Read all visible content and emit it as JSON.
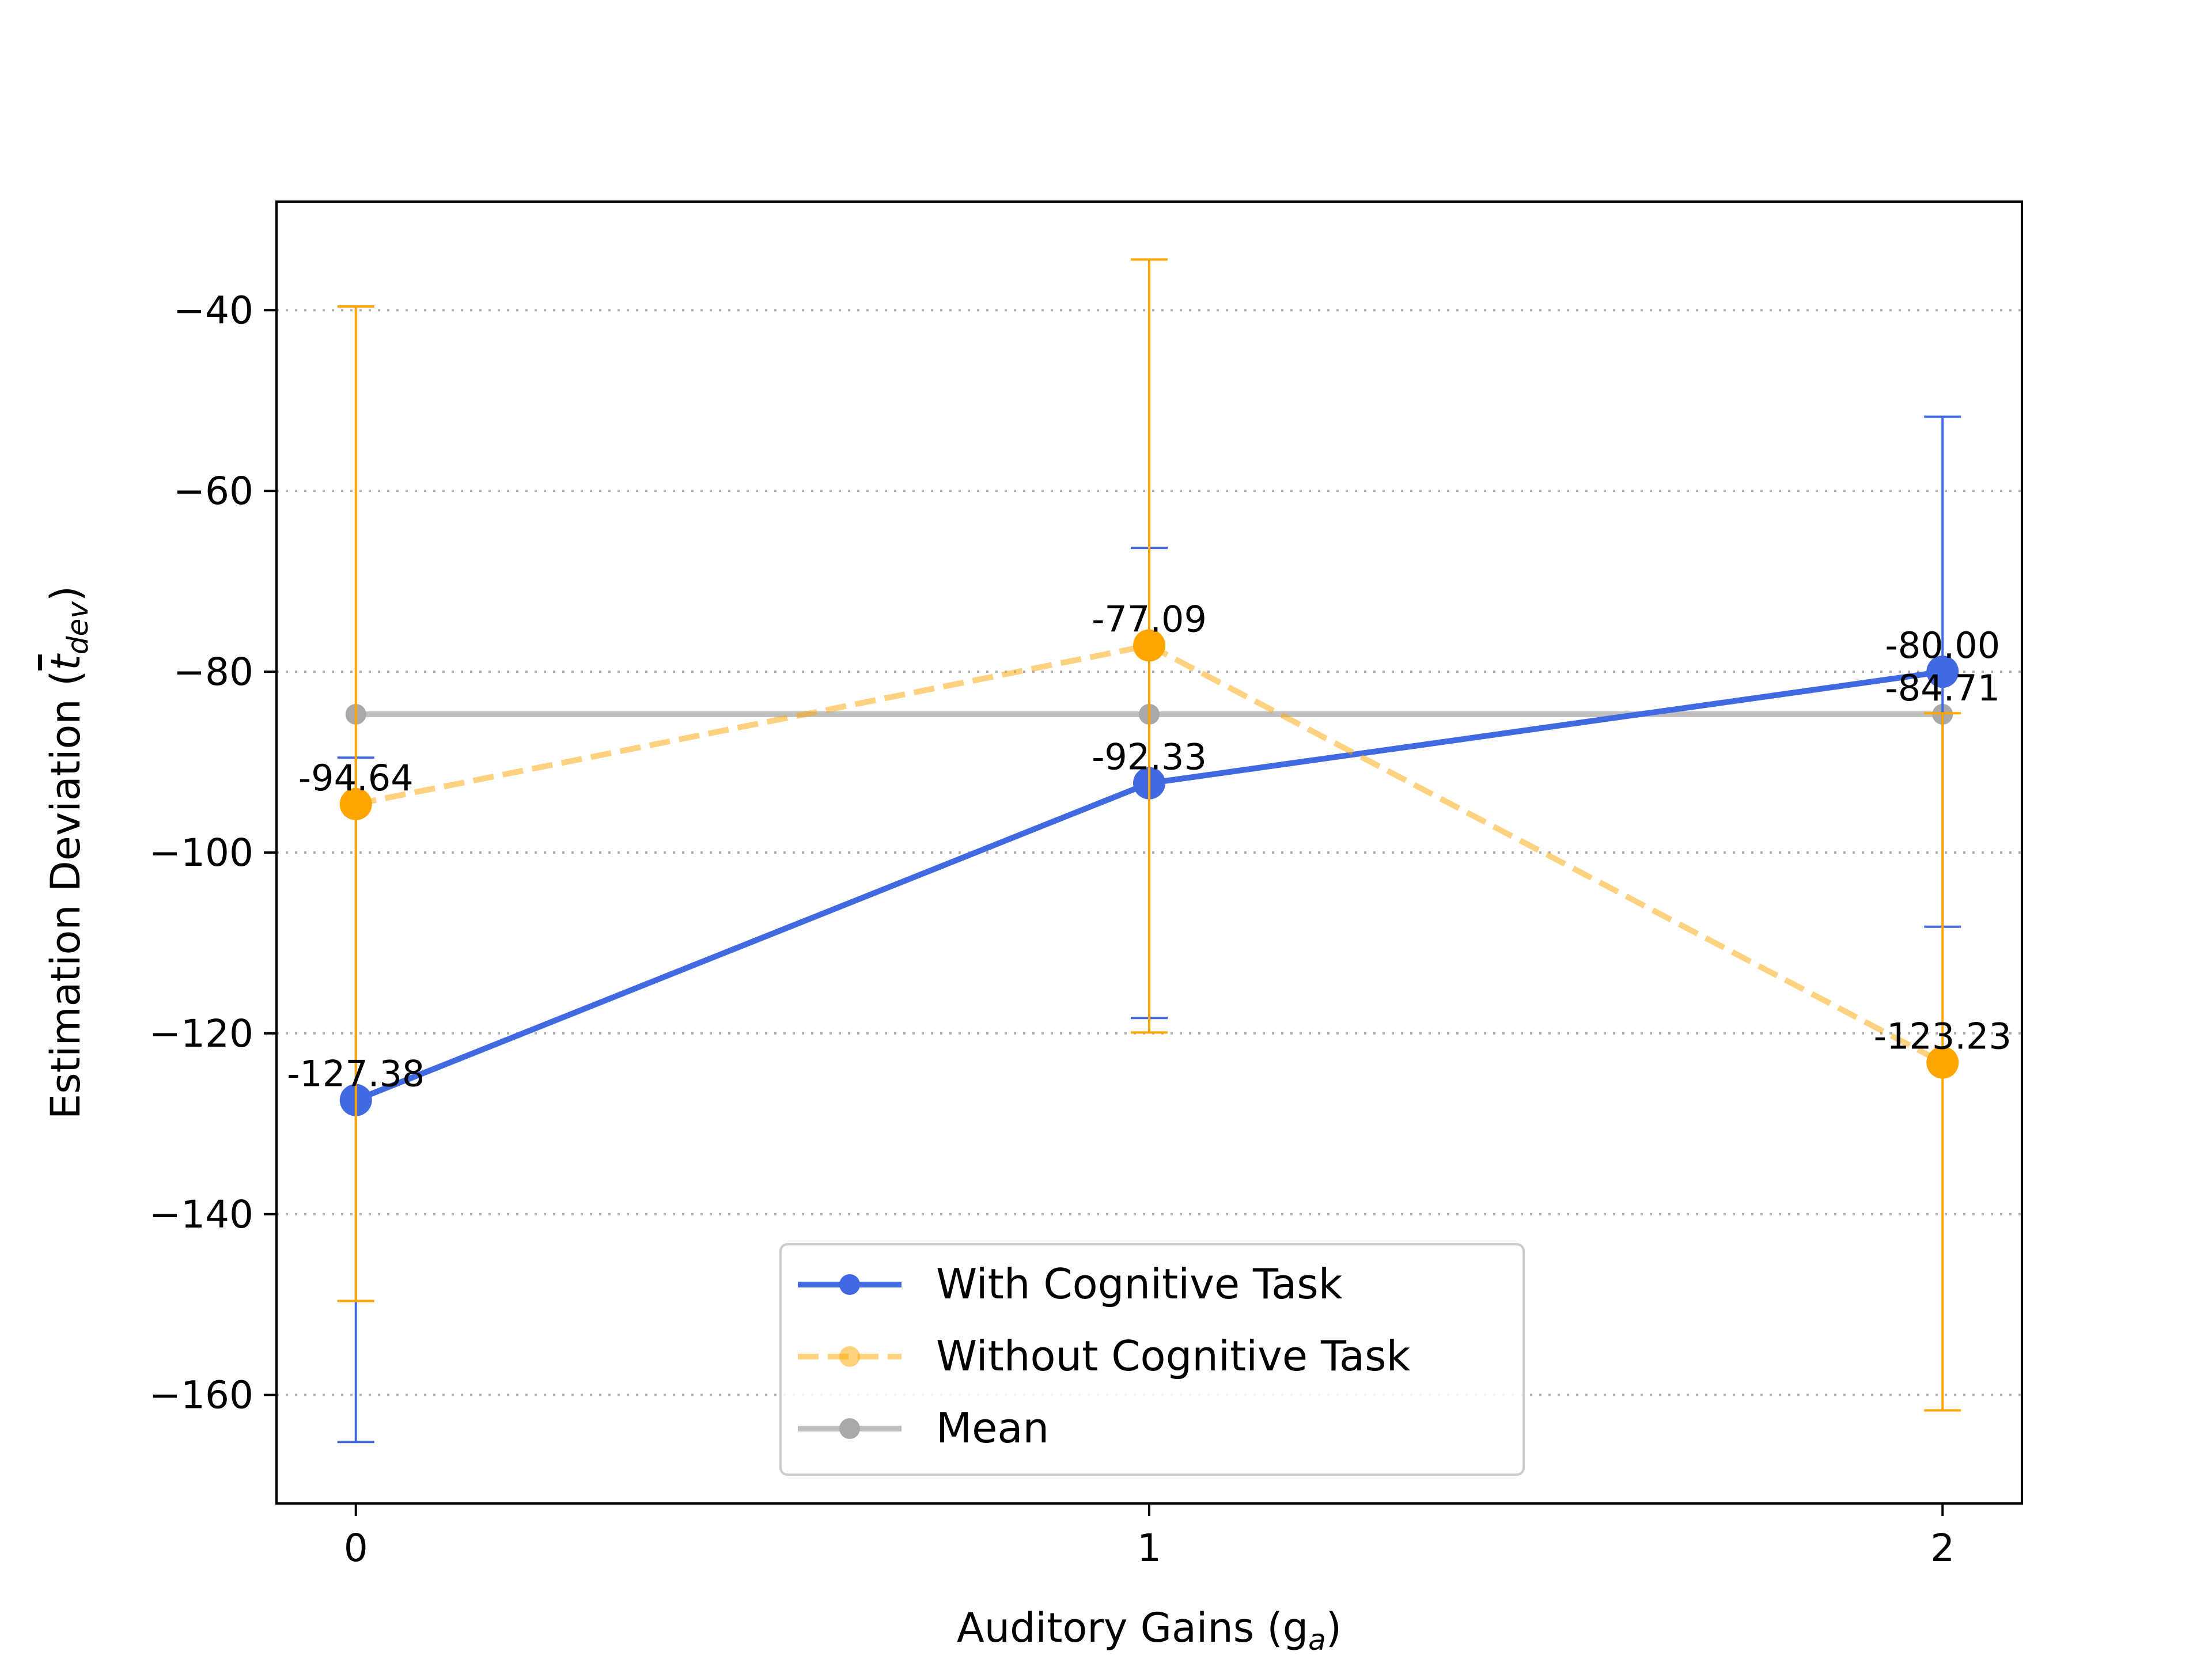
{
  "chart_data": {
    "type": "line",
    "title": "",
    "xlabel": "Auditory Gains (g",
    "xlabel_sub": "a",
    "xlabel_close": ")",
    "ylabel": "Estimation Deviation (",
    "ylabel_sym": "t",
    "ylabel_sub": "dev",
    "ylabel_close": ")",
    "x": [
      0,
      1,
      2
    ],
    "x_tick_labels": [
      "0",
      "1",
      "2"
    ],
    "xlim": [
      -0.1,
      2.1
    ],
    "ylim": [
      -172,
      -28
    ],
    "y_ticks": [
      -40,
      -60,
      -80,
      -100,
      -120,
      -140,
      -160
    ],
    "y_tick_labels": [
      "−40",
      "−60",
      "−80",
      "−100",
      "−120",
      "−140",
      "−160"
    ],
    "grid": "y-dotted",
    "legend_position": "lower-center",
    "series": [
      {
        "name": "With Cognitive Task",
        "color": "#4169e1",
        "style": "solid",
        "values": [
          -127.38,
          -92.33,
          -80.0
        ],
        "labels": [
          "-127.38",
          "-92.33",
          "-80.00"
        ],
        "err_low": [
          -165.2,
          -118.3,
          -108.2
        ],
        "err_high": [
          -89.5,
          -66.3,
          -51.8
        ]
      },
      {
        "name": "Without Cognitive Task",
        "color": "#ffa500",
        "style": "dashed",
        "values": [
          -94.64,
          -77.09,
          -123.23
        ],
        "labels": [
          "-94.64",
          "-77.09",
          "-123.23"
        ],
        "err_low": [
          -149.6,
          -119.9,
          -161.7
        ],
        "err_high": [
          -39.6,
          -34.4,
          -84.6
        ]
      },
      {
        "name": "Mean",
        "color": "#a9a9a9",
        "style": "solid",
        "values": [
          -84.71,
          -84.71,
          -84.71
        ],
        "labels": [
          "",
          "",
          "-84.71"
        ]
      }
    ]
  }
}
